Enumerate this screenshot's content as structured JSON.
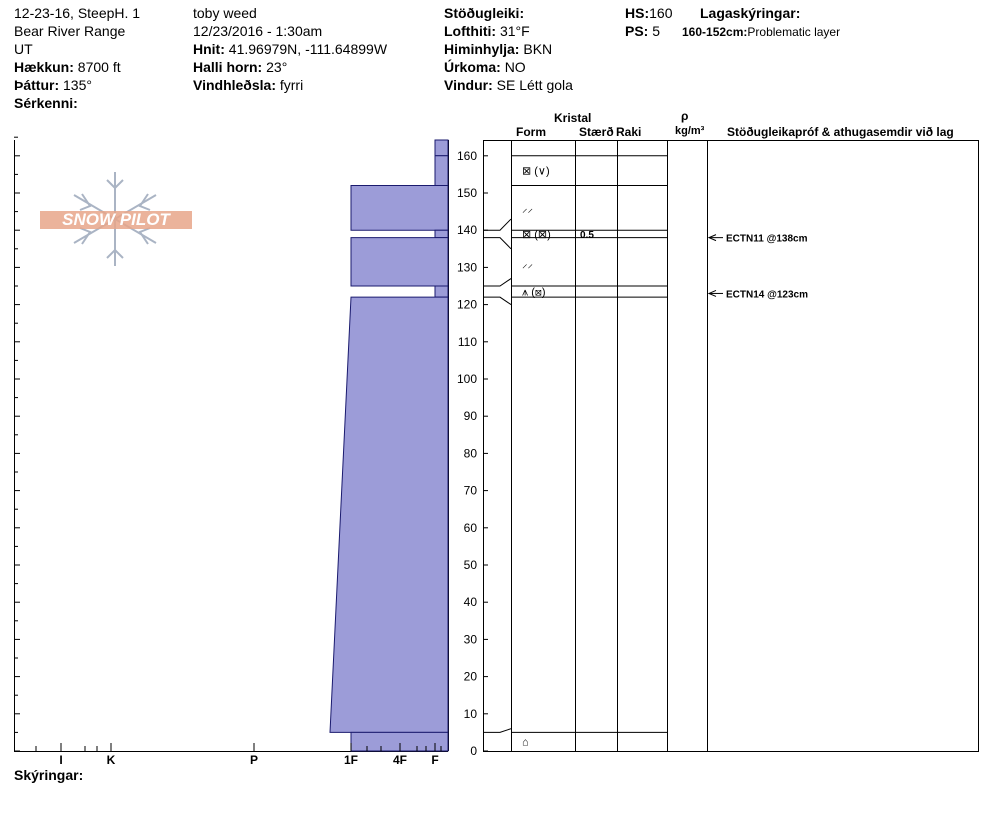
{
  "header": {
    "col1": {
      "line1": "12-23-16, SteepH. 1",
      "line2": "Bear River Range",
      "line3": "UT",
      "elevation_label": "Hækkun:",
      "elevation_value": "8700 ft",
      "aspect_label": "Þáttur:",
      "aspect_value": "135°",
      "features_label": "Sérkenni:"
    },
    "col2": {
      "observer": "toby weed",
      "datetime": "12/23/2016 - 1:30am",
      "coords_label": "Hnit:",
      "coords_value": "41.96979N, -111.64899W",
      "slope_label": "Halli horn:",
      "slope_value": "23°",
      "windload_label": "Vindhleðsla:",
      "windload_value": "fyrri"
    },
    "col3": {
      "stability_label": "Stöðugleiki:",
      "airtemp_label": "Lofthiti:",
      "airtemp_value": "31°F",
      "sky_label": "Himinhylja:",
      "sky_value": "BKN",
      "precip_label": "Úrkoma:",
      "precip_value": "NO",
      "wind_label": "Vindur:",
      "wind_value": "SE Létt gola"
    },
    "col4": {
      "hs_label": "HS:",
      "hs_value": "160",
      "ps_label": "PS:",
      "ps_value": "5",
      "layers_label": "Lagaskýringar:",
      "layer_note_range": "160-152cm:",
      "layer_note_text": "Problematic layer"
    }
  },
  "logo": {
    "text": "SNOW PILOT"
  },
  "footer": {
    "notes_label": "Skýringar:"
  },
  "columns": {
    "crystal": "Kristal",
    "form": "Form",
    "size": "Stærð",
    "moisture": "Raki",
    "rho": "ρ",
    "density_unit": "kg/m³",
    "tests": "Stöðugleikapróf & athugasemdir við lag"
  },
  "colors": {
    "hardness_fill": "#9c9cd8",
    "hardness_stroke": "#1a1a6e",
    "logo_orange": "#e8a68a",
    "logo_grey": "#aab4c4"
  },
  "chart_data": {
    "type": "snow-profile",
    "hardness_scale": [
      "I",
      "K",
      "P",
      "1F",
      "4F",
      "F"
    ],
    "depth_axis": {
      "label": "",
      "unit": "cm",
      "range": [
        0,
        165
      ],
      "ticks": [
        0,
        10,
        20,
        30,
        40,
        50,
        60,
        70,
        80,
        90,
        100,
        110,
        120,
        130,
        140,
        150,
        160
      ]
    },
    "hardness_profile": [
      {
        "top": 165,
        "bottom": 160,
        "hardness": "F"
      },
      {
        "top": 160,
        "bottom": 152,
        "hardness": "F"
      },
      {
        "top": 152,
        "bottom": 140,
        "hardness": "1F"
      },
      {
        "top": 140,
        "bottom": 138,
        "hardness": "F"
      },
      {
        "top": 138,
        "bottom": 125,
        "hardness": "1F"
      },
      {
        "top": 125,
        "bottom": 122,
        "hardness": "F"
      },
      {
        "top": 122,
        "bottom": 5,
        "hardness_top": "1F",
        "hardness_bottom": "P-1F"
      },
      {
        "top": 5,
        "bottom": 0,
        "hardness": "1F"
      }
    ],
    "layer_boundaries": [
      160,
      152,
      140,
      138,
      125,
      122,
      5
    ],
    "crystal_rows": [
      {
        "depth": 156,
        "form": "⊠ (∨)",
        "size": ""
      },
      {
        "depth": 146,
        "form": "⸝⸝",
        "size": ""
      },
      {
        "depth": 139,
        "form": "⊠ (⊠)",
        "size": "0.5"
      },
      {
        "depth": 131,
        "form": "⸝⸝",
        "size": ""
      },
      {
        "depth": 123.5,
        "form": "⩚ (⊠)",
        "size": ""
      },
      {
        "depth": 2.5,
        "form": "⌂",
        "size": ""
      }
    ],
    "stability_tests": [
      {
        "depth": 138,
        "label": "ECTN11 @138cm"
      },
      {
        "depth": 123,
        "label": "ECTN14 @123cm"
      }
    ]
  }
}
